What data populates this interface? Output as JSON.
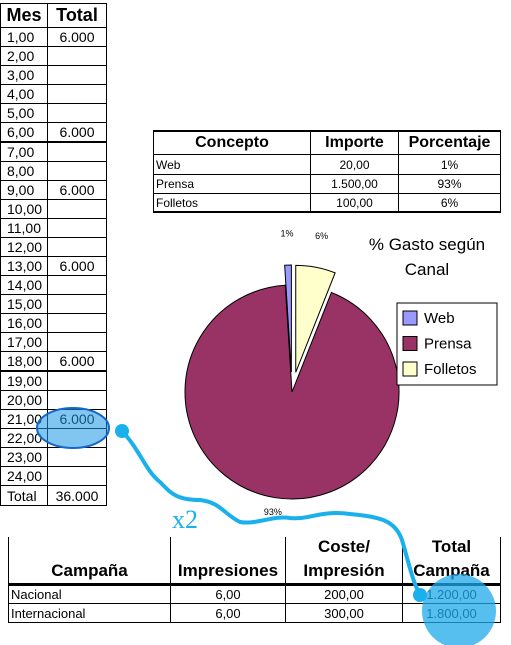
{
  "month_table": {
    "header": [
      "Mes",
      "Total"
    ],
    "rows": [
      {
        "mes": "1,00",
        "total": "6.000"
      },
      {
        "mes": "2,00"
      },
      {
        "mes": "3,00"
      },
      {
        "mes": "4,00"
      },
      {
        "mes": "5,00"
      },
      {
        "mes": "6,00",
        "total": "6.000"
      },
      {
        "mes": "7,00"
      },
      {
        "mes": "8,00"
      },
      {
        "mes": "9,00",
        "total": "6.000"
      },
      {
        "mes": "10,00"
      },
      {
        "mes": "11,00"
      },
      {
        "mes": "12,00"
      },
      {
        "mes": "13,00",
        "total": "6.000"
      },
      {
        "mes": "14,00"
      },
      {
        "mes": "15,00"
      },
      {
        "mes": "16,00"
      },
      {
        "mes": "17,00"
      },
      {
        "mes": "18,00",
        "total": "6.000"
      },
      {
        "mes": "19,00"
      },
      {
        "mes": "20,00"
      },
      {
        "mes": "21,00",
        "total": "6.000"
      },
      {
        "mes": "22,00"
      },
      {
        "mes": "23,00"
      },
      {
        "mes": "24,00"
      }
    ],
    "footer": [
      "Total",
      "36.000"
    ]
  },
  "concept_table": {
    "header": [
      "Concepto",
      "Importe",
      "Porcentaje"
    ],
    "rows": [
      [
        "Web",
        "20,00",
        "1%"
      ],
      [
        "Prensa",
        "1.500,00",
        "93%"
      ],
      [
        "Folletos",
        "100,00",
        "6%"
      ]
    ]
  },
  "chart_data": {
    "type": "pie",
    "title": "% Gasto según Canal",
    "categories": [
      "Web",
      "Prensa",
      "Folletos"
    ],
    "values": [
      1,
      93,
      6
    ],
    "value_labels": [
      "1%",
      "93%",
      "6%"
    ],
    "colors": [
      "#9999ff",
      "#993366",
      "#ffffcc"
    ],
    "legend": "right"
  },
  "campaign_table": {
    "header": [
      "Campaña",
      "Impresiones",
      "Coste/ Impresión",
      "Total Campaña"
    ],
    "rows": [
      [
        "Nacional",
        "6,00",
        "200,00",
        "1.200,00"
      ],
      [
        "Internacional",
        "6,00",
        "300,00",
        "1.800,00"
      ]
    ]
  },
  "annotation": "x2"
}
